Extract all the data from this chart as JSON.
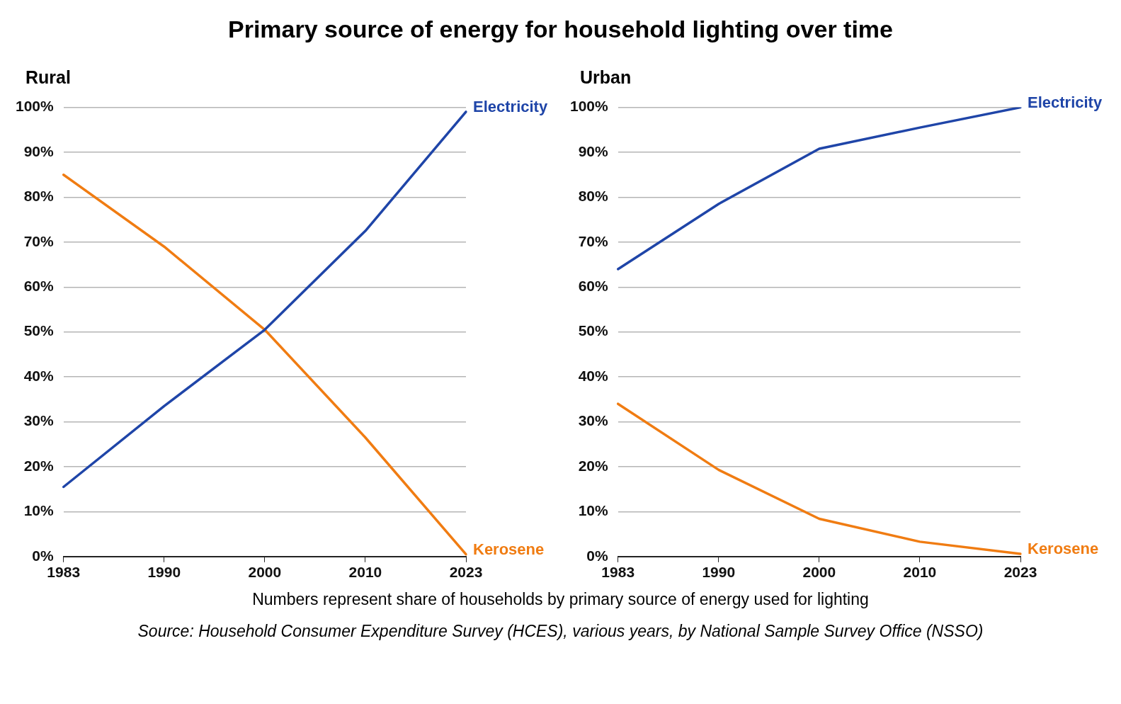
{
  "chart_data": [
    {
      "type": "line",
      "title": "Primary source of energy for household lighting over time",
      "subtitle": "Rural",
      "categories": [
        "1983",
        "1990",
        "2000",
        "2010",
        "2023"
      ],
      "series": [
        {
          "name": "Electricity",
          "color": "#1f45a8",
          "values": [
            15.5,
            33.5,
            50.5,
            72.5,
            99
          ]
        },
        {
          "name": "Kerosene",
          "color": "#f07c12",
          "values": [
            85,
            69,
            50.5,
            26.5,
            0.5
          ]
        }
      ],
      "ylim": [
        0,
        100
      ],
      "yticks": [
        {
          "value": 0,
          "label": "0%"
        },
        {
          "value": 10,
          "label": "10%"
        },
        {
          "value": 20,
          "label": "20%"
        },
        {
          "value": 30,
          "label": "30%"
        },
        {
          "value": 40,
          "label": "40%"
        },
        {
          "value": 50,
          "label": "50%"
        },
        {
          "value": 60,
          "label": "60%"
        },
        {
          "value": 70,
          "label": "70%"
        },
        {
          "value": 80,
          "label": "80%"
        },
        {
          "value": 90,
          "label": "90%"
        },
        {
          "value": 100,
          "label": "100%"
        }
      ],
      "grid": "y",
      "legend": false,
      "marker": "none",
      "line_style": "solid",
      "annotations": [
        "Numbers represent share of households by primary source of energy used for lighting",
        "Source: Household Consumer Expenditure Survey (HCES), various years, by National Sample Survey Office (NSSO)"
      ]
    },
    {
      "type": "line",
      "subtitle": "Urban",
      "categories": [
        "1983",
        "1990",
        "2000",
        "2010",
        "2023"
      ],
      "series": [
        {
          "name": "Electricity",
          "color": "#1f45a8",
          "values": [
            64,
            78.5,
            90.8,
            95.5,
            100
          ]
        },
        {
          "name": "Kerosene",
          "color": "#f07c12",
          "values": [
            34,
            19.3,
            8.4,
            3.3,
            0.6
          ]
        }
      ],
      "ylim": [
        0,
        100
      ],
      "yticks": [
        {
          "value": 0,
          "label": "0%"
        },
        {
          "value": 10,
          "label": "10%"
        },
        {
          "value": 20,
          "label": "20%"
        },
        {
          "value": 30,
          "label": "30%"
        },
        {
          "value": 40,
          "label": "40%"
        },
        {
          "value": 50,
          "label": "50%"
        },
        {
          "value": 60,
          "label": "60%"
        },
        {
          "value": 70,
          "label": "70%"
        },
        {
          "value": 80,
          "label": "80%"
        },
        {
          "value": 90,
          "label": "90%"
        },
        {
          "value": 100,
          "label": "100%"
        }
      ],
      "grid": "y",
      "legend": false,
      "marker": "none",
      "line_style": "solid"
    }
  ]
}
